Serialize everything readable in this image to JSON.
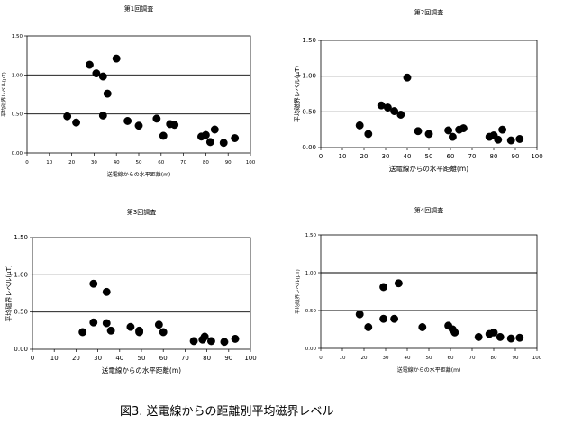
{
  "caption": "図3. 送電線からの距離別平均磁界レベル",
  "chart_data": [
    {
      "type": "scatter",
      "title": "第1回調査",
      "xlabel": "送電線からの水平距離(m)",
      "ylabel": "平均磁界レベル(μT)",
      "xlim": [
        0,
        100
      ],
      "ylim": [
        0,
        1.5
      ],
      "xticks": [
        "0",
        "10",
        "20",
        "30",
        "40",
        "50",
        "60",
        "70",
        "80",
        "90",
        "100"
      ],
      "yticks": [
        "0.00",
        "0.50",
        "1.00",
        "1.50"
      ],
      "grid_y": [
        0.5,
        1.0
      ],
      "points": [
        {
          "x": 18,
          "y": 0.47
        },
        {
          "x": 22,
          "y": 0.39
        },
        {
          "x": 28,
          "y": 1.13
        },
        {
          "x": 31,
          "y": 1.02
        },
        {
          "x": 34,
          "y": 0.98
        },
        {
          "x": 34,
          "y": 0.48
        },
        {
          "x": 36,
          "y": 0.76
        },
        {
          "x": 40,
          "y": 1.21
        },
        {
          "x": 45,
          "y": 0.41
        },
        {
          "x": 50,
          "y": 0.35
        },
        {
          "x": 58,
          "y": 0.44
        },
        {
          "x": 61,
          "y": 0.22
        },
        {
          "x": 64,
          "y": 0.37
        },
        {
          "x": 66,
          "y": 0.36
        },
        {
          "x": 78,
          "y": 0.21
        },
        {
          "x": 80,
          "y": 0.23
        },
        {
          "x": 82,
          "y": 0.14
        },
        {
          "x": 84,
          "y": 0.3
        },
        {
          "x": 88,
          "y": 0.13
        },
        {
          "x": 93,
          "y": 0.19
        }
      ]
    },
    {
      "type": "scatter",
      "title": "第2回調査",
      "xlabel": "送電線からの水平距離(m)",
      "ylabel": "平均磁界レベル(μT)",
      "xlim": [
        0,
        100
      ],
      "ylim": [
        0,
        1.5
      ],
      "xticks": [
        "0",
        "10",
        "20",
        "30",
        "40",
        "50",
        "60",
        "70",
        "80",
        "90",
        "100"
      ],
      "yticks": [
        "0.00",
        "0.50",
        "1.00",
        "1.50"
      ],
      "grid_y": [
        0.5,
        1.0
      ],
      "points": [
        {
          "x": 18,
          "y": 0.31
        },
        {
          "x": 22,
          "y": 0.19
        },
        {
          "x": 28,
          "y": 0.59
        },
        {
          "x": 31,
          "y": 0.56
        },
        {
          "x": 34,
          "y": 0.51
        },
        {
          "x": 37,
          "y": 0.46
        },
        {
          "x": 40,
          "y": 0.98
        },
        {
          "x": 45,
          "y": 0.23
        },
        {
          "x": 50,
          "y": 0.19
        },
        {
          "x": 59,
          "y": 0.24
        },
        {
          "x": 61,
          "y": 0.15
        },
        {
          "x": 64,
          "y": 0.25
        },
        {
          "x": 66,
          "y": 0.27
        },
        {
          "x": 78,
          "y": 0.15
        },
        {
          "x": 80,
          "y": 0.17
        },
        {
          "x": 82,
          "y": 0.11
        },
        {
          "x": 84,
          "y": 0.25
        },
        {
          "x": 88,
          "y": 0.1
        },
        {
          "x": 92,
          "y": 0.12
        }
      ]
    },
    {
      "type": "scatter",
      "title": "第3回調査",
      "xlabel": "送電線からの水平距離(m)",
      "ylabel": "平均磁界レベル(μT)",
      "xlim": [
        0,
        100
      ],
      "ylim": [
        0,
        1.5
      ],
      "xticks": [
        "0",
        "10",
        "20",
        "30",
        "40",
        "50",
        "60",
        "70",
        "80",
        "90",
        "100"
      ],
      "yticks": [
        "0.00",
        "0.50",
        "1.00",
        "1.50"
      ],
      "grid_y": [
        0.5,
        1.0
      ],
      "points": [
        {
          "x": 23,
          "y": 0.23
        },
        {
          "x": 28,
          "y": 0.88
        },
        {
          "x": 28,
          "y": 0.36
        },
        {
          "x": 34,
          "y": 0.77
        },
        {
          "x": 34,
          "y": 0.35
        },
        {
          "x": 36,
          "y": 0.25
        },
        {
          "x": 45,
          "y": 0.3
        },
        {
          "x": 49,
          "y": 0.23
        },
        {
          "x": 49,
          "y": 0.25
        },
        {
          "x": 58,
          "y": 0.33
        },
        {
          "x": 60,
          "y": 0.23
        },
        {
          "x": 74,
          "y": 0.11
        },
        {
          "x": 78,
          "y": 0.13
        },
        {
          "x": 79,
          "y": 0.17
        },
        {
          "x": 82,
          "y": 0.11
        },
        {
          "x": 88,
          "y": 0.1
        },
        {
          "x": 93,
          "y": 0.14
        }
      ]
    },
    {
      "type": "scatter",
      "title": "第4回調査",
      "xlabel": "送電線からの水平距離(m)",
      "ylabel": "平均磁界レベル(μT)",
      "xlim": [
        0,
        100
      ],
      "ylim": [
        0,
        1.5
      ],
      "xticks": [
        "0",
        "10",
        "20",
        "30",
        "40",
        "50",
        "60",
        "70",
        "80",
        "90",
        "100"
      ],
      "yticks": [
        "0.00",
        "0.50",
        "1.00",
        "1.50"
      ],
      "grid_y": [
        0.5,
        1.0
      ],
      "points": [
        {
          "x": 18,
          "y": 0.45
        },
        {
          "x": 22,
          "y": 0.28
        },
        {
          "x": 29,
          "y": 0.81
        },
        {
          "x": 29,
          "y": 0.39
        },
        {
          "x": 34,
          "y": 0.39
        },
        {
          "x": 36,
          "y": 0.86
        },
        {
          "x": 47,
          "y": 0.28
        },
        {
          "x": 59,
          "y": 0.3
        },
        {
          "x": 61,
          "y": 0.25
        },
        {
          "x": 62,
          "y": 0.21
        },
        {
          "x": 73,
          "y": 0.15
        },
        {
          "x": 78,
          "y": 0.19
        },
        {
          "x": 80,
          "y": 0.21
        },
        {
          "x": 83,
          "y": 0.15
        },
        {
          "x": 88,
          "y": 0.13
        },
        {
          "x": 92,
          "y": 0.14
        }
      ]
    }
  ]
}
